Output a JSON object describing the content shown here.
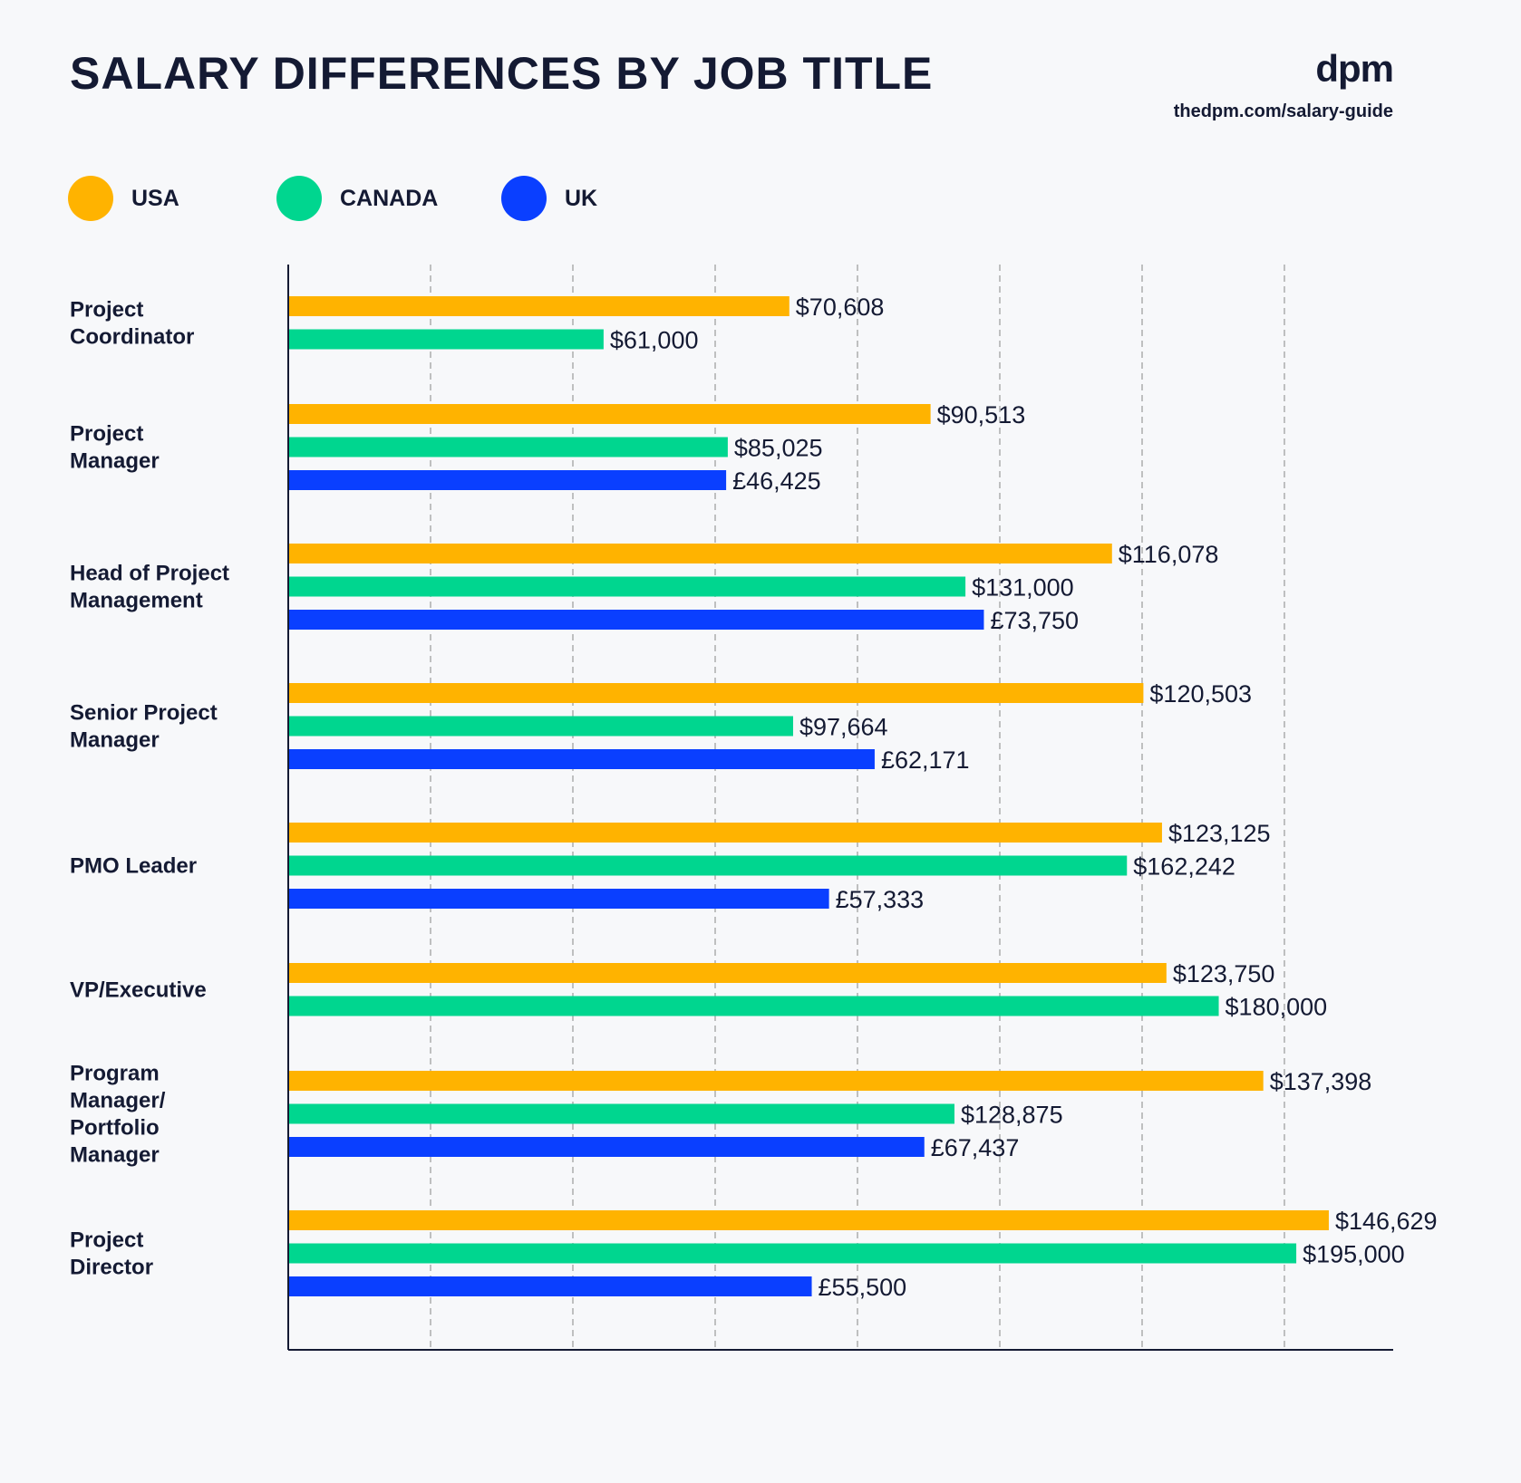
{
  "header": {
    "title": "SALARY DIFFERENCES BY JOB TITLE",
    "brand": "dpm",
    "brand_url": "thedpm.com/salary-guide"
  },
  "colors": {
    "usa": "#FFB300",
    "canada": "#00D68F",
    "uk": "#0A3FFF",
    "text": "#141a33",
    "grid": "#9a9a9a",
    "background": "#f7f8fa"
  },
  "chart_data": {
    "type": "bar",
    "orientation": "horizontal",
    "title": "SALARY DIFFERENCES BY JOB TITLE",
    "grid": true,
    "legend_position": "top-left",
    "categories": [
      [
        "Project",
        "Coordinator"
      ],
      [
        "Project",
        "Manager"
      ],
      [
        "Head of Project",
        "Management"
      ],
      [
        "Senior Project",
        "Manager"
      ],
      [
        "PMO Leader"
      ],
      [
        "VP/Executive"
      ],
      [
        "Program",
        "Manager/",
        "Portfolio",
        "Manager"
      ],
      [
        "Project",
        "Director"
      ]
    ],
    "series": [
      {
        "name": "USA",
        "color": "#FFB300",
        "values": [
          70608,
          90513,
          116078,
          120503,
          123125,
          123750,
          137398,
          146629
        ],
        "labels": [
          "$70,608",
          "$90,513",
          "$116,078",
          "$120,503",
          "$123,125",
          "$123,750",
          "$137,398",
          "$146,629"
        ]
      },
      {
        "name": "CANADA",
        "color": "#00D68F",
        "values": [
          61000,
          85025,
          131000,
          97664,
          162242,
          180000,
          128875,
          195000
        ],
        "labels": [
          "$61,000",
          "$85,025",
          "$131,000",
          "$97,664",
          "$162,242",
          "$180,000",
          "$128,875",
          "$195,000"
        ]
      },
      {
        "name": "UK",
        "color": "#0A3FFF",
        "values": [
          null,
          46425,
          73750,
          62171,
          57333,
          null,
          67437,
          55500
        ],
        "labels": [
          null,
          "£46,425",
          "£73,750",
          "£62,171",
          "£57,333",
          null,
          "£67,437",
          "£55,500"
        ]
      }
    ]
  }
}
